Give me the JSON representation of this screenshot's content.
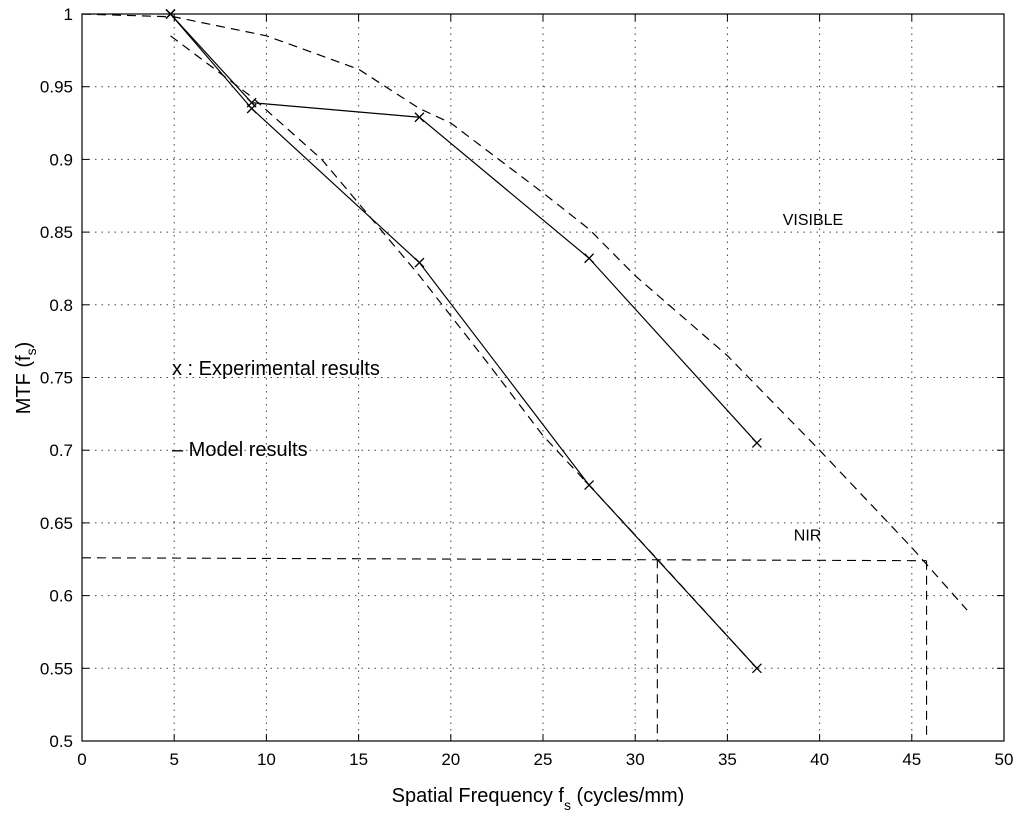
{
  "chart_data": {
    "type": "line",
    "title": "",
    "xlabel": "Spatial Frequency f",
    "xlabel_sub": "s",
    "xlabel_suffix": " (cycles/mm)",
    "ylabel": "MTF (f",
    "ylabel_sub": "s",
    "ylabel_suffix": ")",
    "xlim": [
      0,
      50
    ],
    "ylim": [
      0.5,
      1
    ],
    "xticks": [
      0,
      5,
      10,
      15,
      20,
      25,
      30,
      35,
      40,
      45,
      50
    ],
    "yticks": [
      0.5,
      0.55,
      0.6,
      0.65,
      0.7,
      0.75,
      0.8,
      0.85,
      0.9,
      0.95,
      1
    ],
    "ytick_labels": [
      "0.5",
      "0.55",
      "0.6",
      "0.65",
      "0.7",
      "0.75",
      "0.8",
      "0.85",
      "0.9",
      "0.95",
      "1"
    ],
    "grid": true,
    "series": [
      {
        "role": "experimental-visible",
        "style": "solid",
        "marker": "x",
        "x": [
          4.8,
          9.2,
          18.3,
          27.5,
          36.6
        ],
        "y": [
          1.0,
          0.939,
          0.929,
          0.832,
          0.705
        ]
      },
      {
        "role": "experimental-nir",
        "style": "solid",
        "marker": "x",
        "x": [
          4.8,
          9.2,
          18.3,
          27.5,
          36.6
        ],
        "y": [
          1.0,
          0.935,
          0.829,
          0.676,
          0.55
        ]
      },
      {
        "role": "model-visible",
        "style": "dashed",
        "x": [
          0,
          5,
          10,
          15,
          18.3,
          20,
          25,
          27.5,
          30,
          35,
          40,
          45,
          48
        ],
        "y": [
          1.0,
          0.998,
          0.985,
          0.962,
          0.935,
          0.925,
          0.877,
          0.852,
          0.82,
          0.765,
          0.7,
          0.633,
          0.59
        ]
      },
      {
        "role": "model-nir",
        "style": "dashed",
        "x": [
          4.8,
          9.2,
          13,
          18.3,
          22,
          25,
          27.5,
          31.2,
          33,
          36.6
        ],
        "y": [
          0.985,
          0.943,
          0.9,
          0.82,
          0.76,
          0.71,
          0.676,
          0.625,
          0.6,
          0.55
        ]
      }
    ],
    "reference_lines": [
      {
        "style": "dashed",
        "from": [
          0,
          0.626
        ],
        "to": [
          45.8,
          0.624
        ]
      },
      {
        "style": "dashed",
        "from": [
          31.2,
          0.625
        ],
        "to": [
          31.2,
          0.5
        ]
      },
      {
        "style": "dashed",
        "from": [
          45.8,
          0.624
        ],
        "to": [
          45.8,
          0.5
        ]
      }
    ],
    "annotations": [
      {
        "text": "VISIBLE",
        "x": 38,
        "y": 0.855
      },
      {
        "text": "NIR",
        "x": 38.6,
        "y": 0.638
      }
    ],
    "legend": [
      {
        "marker": "x",
        "text": "x : Experimental results"
      },
      {
        "marker": "-",
        "text": "– Model results"
      }
    ],
    "legend_position": "left"
  }
}
